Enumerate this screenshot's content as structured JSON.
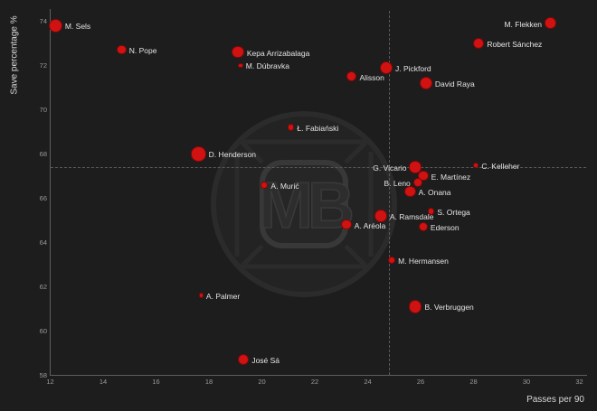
{
  "page": {
    "background_color": "#1d1d1d"
  },
  "watermark": {
    "text": "MB"
  },
  "chart_data": {
    "type": "scatter",
    "title": "",
    "xlabel": "Passes per 90",
    "ylabel": "Save percentage %",
    "xlim": [
      11.6,
      32.3
    ],
    "ylim": [
      57.7,
      74.5
    ],
    "x_ticks": [
      12,
      14,
      16,
      18,
      20,
      22,
      24,
      26,
      28,
      30,
      32
    ],
    "y_ticks": [
      58,
      60,
      62,
      64,
      66,
      68,
      70,
      72,
      74
    ],
    "grid": false,
    "legend": "none",
    "avg_line_x": 24.8,
    "avg_line_y": 67.4,
    "accent_color": "#d11212",
    "background_color": "#1d1d1d",
    "points": [
      {
        "name": "M. Sels",
        "x": 12.2,
        "y": 73.8,
        "r": 7.5,
        "label_side": "right"
      },
      {
        "name": "N. Pope",
        "x": 14.7,
        "y": 72.7,
        "r": 5.3,
        "label_side": "right"
      },
      {
        "name": "Kepa Arrizabalaga",
        "x": 19.1,
        "y": 72.6,
        "r": 6.7,
        "label_side": "right"
      },
      {
        "name": "M. Dúbravka",
        "x": 19.2,
        "y": 72.0,
        "r": 2.7,
        "label_side": "right"
      },
      {
        "name": "Alisson",
        "x": 23.4,
        "y": 71.5,
        "r": 5.5,
        "label_side": "right"
      },
      {
        "name": "J. Pickford",
        "x": 24.7,
        "y": 71.9,
        "r": 7.0,
        "label_side": "right"
      },
      {
        "name": "David Raya",
        "x": 26.2,
        "y": 71.2,
        "r": 7.0,
        "label_side": "right"
      },
      {
        "name": "Robert Sánchez",
        "x": 28.2,
        "y": 73.0,
        "r": 6.0,
        "label_side": "right"
      },
      {
        "name": "M. Flekken",
        "x": 30.9,
        "y": 73.9,
        "r": 6.3,
        "label_side": "left"
      },
      {
        "name": "Ł. Fabiański",
        "x": 21.1,
        "y": 69.2,
        "r": 3.7,
        "label_side": "right"
      },
      {
        "name": "D. Henderson",
        "x": 17.6,
        "y": 68.0,
        "r": 8.3,
        "label_side": "right"
      },
      {
        "name": "A. Murić",
        "x": 20.1,
        "y": 66.6,
        "r": 4.0,
        "label_side": "right"
      },
      {
        "name": "E. Martínez",
        "x": 26.1,
        "y": 67.0,
        "r": 5.7,
        "label_side": "right"
      },
      {
        "name": "B. Leno",
        "x": 25.9,
        "y": 66.7,
        "r": 5.3,
        "label_side": "left"
      },
      {
        "name": "G. Vicario",
        "x": 25.8,
        "y": 67.4,
        "r": 6.7,
        "label_side": "left"
      },
      {
        "name": "A. Onana",
        "x": 25.6,
        "y": 66.3,
        "r": 6.3,
        "label_side": "right"
      },
      {
        "name": "C. Kelleher",
        "x": 28.1,
        "y": 67.5,
        "r": 3.0,
        "label_side": "right"
      },
      {
        "name": "S. Ortega",
        "x": 26.4,
        "y": 65.4,
        "r": 3.7,
        "label_side": "right"
      },
      {
        "name": "A. Ramsdale",
        "x": 24.5,
        "y": 65.2,
        "r": 6.7,
        "label_side": "right"
      },
      {
        "name": "A. Aréola",
        "x": 23.2,
        "y": 64.8,
        "r": 5.7,
        "label_side": "right"
      },
      {
        "name": "Ederson",
        "x": 26.1,
        "y": 64.7,
        "r": 5.0,
        "label_side": "right"
      },
      {
        "name": "M. Hermansen",
        "x": 24.9,
        "y": 63.2,
        "r": 4.3,
        "label_side": "right"
      },
      {
        "name": "A. Palmer",
        "x": 17.7,
        "y": 61.6,
        "r": 2.7,
        "label_side": "right"
      },
      {
        "name": "B. Verbruggen",
        "x": 25.8,
        "y": 61.1,
        "r": 7.3,
        "label_side": "right"
      },
      {
        "name": "José Sá",
        "x": 19.3,
        "y": 58.7,
        "r": 6.3,
        "label_side": "right"
      }
    ]
  }
}
